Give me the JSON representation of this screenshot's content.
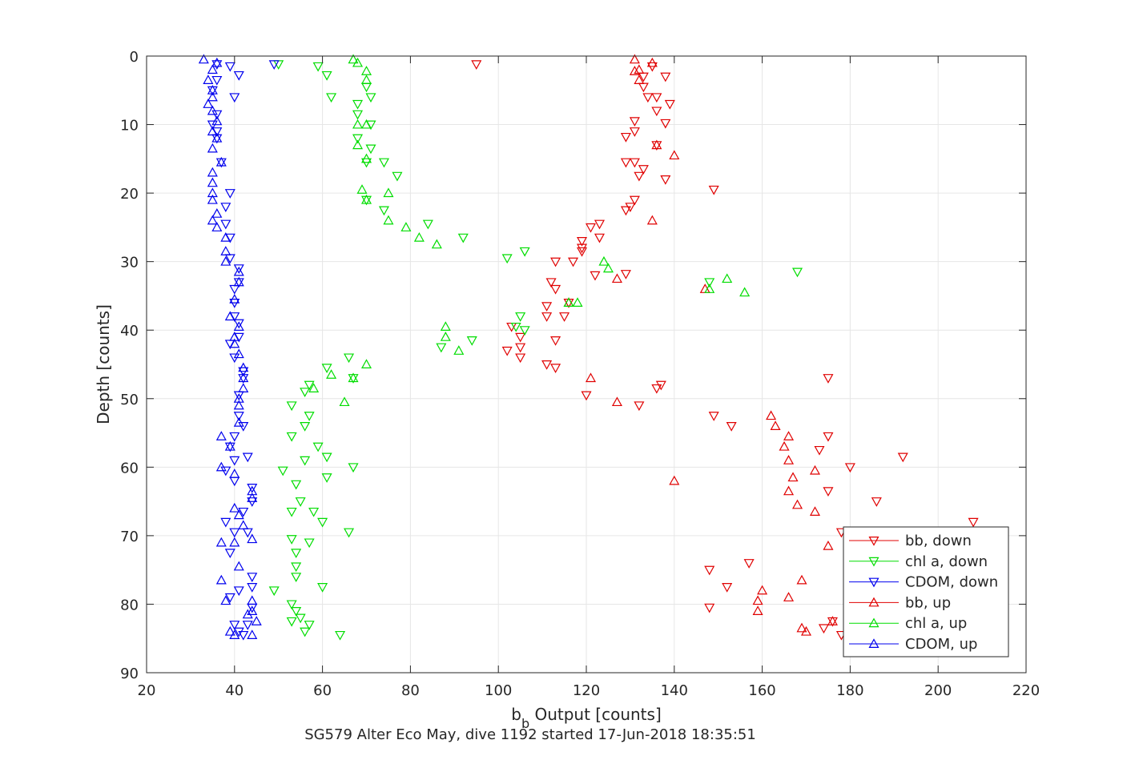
{
  "chart_data": {
    "type": "scatter",
    "title": "",
    "xlabel_main": "b",
    "xlabel_sub": "b",
    "xlabel_rest": " Output [counts]",
    "ylabel": "Depth [counts]",
    "caption": "SG579 Alter Eco May, dive 1192 started 17-Jun-2018 18:35:51",
    "xlim": [
      20,
      220
    ],
    "ylim": [
      0,
      90
    ],
    "y_reversed": true,
    "grid": true,
    "legend_position": "bottom-right",
    "x_ticks": [
      "20",
      "40",
      "60",
      "80",
      "100",
      "120",
      "140",
      "160",
      "180",
      "200",
      "220"
    ],
    "y_ticks": [
      "0",
      "10",
      "20",
      "30",
      "40",
      "50",
      "60",
      "70",
      "80",
      "90"
    ],
    "series": [
      {
        "name": "bb, down",
        "color": "#e00000",
        "marker": "triangle-down",
        "points": [
          [
            95,
            1.2
          ],
          [
            135,
            1.5
          ],
          [
            133,
            3
          ],
          [
            138,
            3
          ],
          [
            133,
            4.5
          ],
          [
            136,
            6
          ],
          [
            134,
            6
          ],
          [
            139,
            7
          ],
          [
            136,
            8
          ],
          [
            131,
            9.5
          ],
          [
            138,
            9.8
          ],
          [
            131,
            11
          ],
          [
            136,
            13
          ],
          [
            129,
            11.8
          ],
          [
            131,
            15.5
          ],
          [
            129,
            15.5
          ],
          [
            133,
            16.5
          ],
          [
            132,
            17.5
          ],
          [
            138,
            18
          ],
          [
            149,
            19.5
          ],
          [
            131,
            21
          ],
          [
            130,
            22
          ],
          [
            129,
            22.5
          ],
          [
            123,
            24.5
          ],
          [
            121,
            25
          ],
          [
            123,
            26.5
          ],
          [
            119,
            27
          ],
          [
            119,
            28
          ],
          [
            119,
            28.5
          ],
          [
            113,
            30
          ],
          [
            117,
            30
          ],
          [
            122,
            32
          ],
          [
            129,
            31.8
          ],
          [
            112,
            33
          ],
          [
            113,
            34
          ],
          [
            111,
            36.5
          ],
          [
            116,
            36
          ],
          [
            115,
            38
          ],
          [
            111,
            38
          ],
          [
            103,
            39.5
          ],
          [
            105,
            41
          ],
          [
            113,
            41.5
          ],
          [
            105,
            42.5
          ],
          [
            102,
            43
          ],
          [
            105,
            44
          ],
          [
            111,
            45
          ],
          [
            113,
            45.5
          ],
          [
            137,
            48
          ],
          [
            136,
            48.5
          ],
          [
            120,
            49.5
          ],
          [
            132,
            51
          ],
          [
            175,
            47
          ],
          [
            149,
            52.5
          ],
          [
            153,
            54
          ],
          [
            175,
            55.5
          ],
          [
            173,
            57.5
          ],
          [
            180,
            60
          ],
          [
            192,
            58.5
          ],
          [
            186,
            65
          ],
          [
            175,
            63.5
          ],
          [
            208,
            68
          ],
          [
            178,
            69.5
          ],
          [
            157,
            74
          ],
          [
            148,
            75
          ],
          [
            152,
            77.5
          ],
          [
            148,
            80.5
          ],
          [
            176,
            82.5
          ],
          [
            174,
            83.5
          ],
          [
            178,
            84.5
          ]
        ]
      },
      {
        "name": "chl a, down",
        "color": "#00dd00",
        "marker": "triangle-down",
        "points": [
          [
            50,
            1.2
          ],
          [
            59,
            1.5
          ],
          [
            61,
            2.8
          ],
          [
            62,
            6
          ],
          [
            68,
            7
          ],
          [
            70,
            4.5
          ],
          [
            71,
            6
          ],
          [
            68,
            8.5
          ],
          [
            71,
            10
          ],
          [
            68,
            12
          ],
          [
            71,
            13.5
          ],
          [
            70,
            15.5
          ],
          [
            74,
            15.5
          ],
          [
            77,
            17.5
          ],
          [
            70,
            21
          ],
          [
            74,
            22.5
          ],
          [
            84,
            24.5
          ],
          [
            92,
            26.5
          ],
          [
            106,
            28.5
          ],
          [
            102,
            29.5
          ],
          [
            105,
            38
          ],
          [
            106,
            40
          ],
          [
            94,
            41.5
          ],
          [
            87,
            42.5
          ],
          [
            104,
            39.5
          ],
          [
            66,
            44
          ],
          [
            61,
            45.5
          ],
          [
            67,
            47
          ],
          [
            57,
            48
          ],
          [
            56,
            49
          ],
          [
            53,
            51
          ],
          [
            57,
            52.5
          ],
          [
            56,
            54
          ],
          [
            53,
            55.5
          ],
          [
            59,
            57
          ],
          [
            61,
            58.5
          ],
          [
            56,
            59
          ],
          [
            51,
            60.5
          ],
          [
            67,
            60
          ],
          [
            61,
            61.5
          ],
          [
            54,
            62.5
          ],
          [
            55,
            65
          ],
          [
            53,
            66.5
          ],
          [
            58,
            66.5
          ],
          [
            60,
            68
          ],
          [
            66,
            69.5
          ],
          [
            53,
            70.5
          ],
          [
            57,
            71
          ],
          [
            54,
            72.5
          ],
          [
            54,
            74.5
          ],
          [
            60,
            77.5
          ],
          [
            54,
            76
          ],
          [
            49,
            78
          ],
          [
            53,
            80
          ],
          [
            54,
            81
          ],
          [
            55,
            82
          ],
          [
            57,
            83
          ],
          [
            53,
            82.5
          ],
          [
            56,
            84
          ],
          [
            64,
            84.5
          ],
          [
            168,
            31.5
          ],
          [
            148,
            33
          ]
        ]
      },
      {
        "name": "CDOM, down",
        "color": "#0000ee",
        "marker": "triangle-down",
        "points": [
          [
            36,
            1.2
          ],
          [
            39,
            1.5
          ],
          [
            41,
            2.8
          ],
          [
            40,
            6
          ],
          [
            49,
            1.2
          ],
          [
            36,
            3.5
          ],
          [
            35,
            5
          ],
          [
            36,
            8.5
          ],
          [
            35,
            10
          ],
          [
            36,
            11
          ],
          [
            36,
            12
          ],
          [
            37,
            15.5
          ],
          [
            39,
            20
          ],
          [
            38,
            22
          ],
          [
            38,
            24.5
          ],
          [
            39,
            26.5
          ],
          [
            39,
            29.5
          ],
          [
            41,
            31
          ],
          [
            41,
            33
          ],
          [
            40,
            34
          ],
          [
            40,
            36
          ],
          [
            40,
            38
          ],
          [
            41,
            39
          ],
          [
            41,
            41
          ],
          [
            39,
            42
          ],
          [
            40,
            44
          ],
          [
            42,
            46
          ],
          [
            42,
            47
          ],
          [
            41,
            49.5
          ],
          [
            41,
            52.5
          ],
          [
            42,
            54
          ],
          [
            40,
            55.5
          ],
          [
            39,
            57
          ],
          [
            43,
            58.5
          ],
          [
            40,
            59
          ],
          [
            38,
            60.5
          ],
          [
            40,
            62
          ],
          [
            44,
            63
          ],
          [
            44,
            65
          ],
          [
            42,
            66.5
          ],
          [
            38,
            68
          ],
          [
            40,
            69.5
          ],
          [
            43,
            69.5
          ],
          [
            39,
            72.5
          ],
          [
            44,
            76
          ],
          [
            44,
            77.5
          ],
          [
            41,
            78
          ],
          [
            39,
            79
          ],
          [
            44,
            80.5
          ],
          [
            40,
            83
          ],
          [
            43,
            83
          ],
          [
            41,
            84
          ],
          [
            42,
            84.5
          ]
        ]
      },
      {
        "name": "bb, up",
        "color": "#e00000",
        "marker": "triangle-up",
        "points": [
          [
            131,
            0.5
          ],
          [
            135,
            1
          ],
          [
            132,
            2
          ],
          [
            132,
            3.5
          ],
          [
            136,
            13
          ],
          [
            140,
            14.5
          ],
          [
            135,
            24
          ],
          [
            127,
            32.5
          ],
          [
            116,
            36
          ],
          [
            147,
            34
          ],
          [
            131,
            2.2
          ],
          [
            162,
            52.5
          ],
          [
            163,
            54
          ],
          [
            166,
            55.5
          ],
          [
            165,
            57
          ],
          [
            166,
            59
          ],
          [
            167,
            61.5
          ],
          [
            172,
            60.5
          ],
          [
            166,
            63.5
          ],
          [
            168,
            65.5
          ],
          [
            172,
            66.5
          ],
          [
            175,
            71.5
          ],
          [
            140,
            62
          ],
          [
            169,
            76.5
          ],
          [
            160,
            78
          ],
          [
            166,
            79
          ],
          [
            159,
            79.5
          ],
          [
            159,
            81
          ],
          [
            176,
            82.5
          ],
          [
            169,
            83.5
          ],
          [
            170,
            84
          ],
          [
            121,
            47
          ],
          [
            127,
            50.5
          ]
        ]
      },
      {
        "name": "chl a, up",
        "color": "#00dd00",
        "marker": "triangle-up",
        "points": [
          [
            67,
            0.5
          ],
          [
            68,
            1
          ],
          [
            70,
            2.2
          ],
          [
            70,
            3.5
          ],
          [
            68,
            10
          ],
          [
            70,
            10
          ],
          [
            68,
            13
          ],
          [
            70,
            15
          ],
          [
            69,
            19.5
          ],
          [
            75,
            20
          ],
          [
            70,
            21
          ],
          [
            75,
            24
          ],
          [
            79,
            25
          ],
          [
            82,
            26.5
          ],
          [
            86,
            27.5
          ],
          [
            124,
            30
          ],
          [
            125,
            31
          ],
          [
            118,
            36
          ],
          [
            116,
            36
          ],
          [
            88,
            39.5
          ],
          [
            88,
            41
          ],
          [
            91,
            43
          ],
          [
            70,
            45
          ],
          [
            67,
            47
          ],
          [
            65,
            50.5
          ],
          [
            58,
            48.5
          ],
          [
            62,
            46.5
          ],
          [
            152,
            32.5
          ],
          [
            156,
            34.5
          ],
          [
            148,
            34
          ]
        ]
      },
      {
        "name": "CDOM, up",
        "color": "#0000ee",
        "marker": "triangle-up",
        "points": [
          [
            33,
            0.5
          ],
          [
            36,
            1
          ],
          [
            35,
            2
          ],
          [
            34,
            3.5
          ],
          [
            35,
            5
          ],
          [
            35,
            6
          ],
          [
            34,
            7
          ],
          [
            35,
            8
          ],
          [
            36,
            9.5
          ],
          [
            35,
            11
          ],
          [
            36,
            12
          ],
          [
            35,
            13.5
          ],
          [
            37,
            15.5
          ],
          [
            35,
            17
          ],
          [
            35,
            18.5
          ],
          [
            35,
            20
          ],
          [
            35,
            21
          ],
          [
            36,
            23
          ],
          [
            35,
            24
          ],
          [
            36,
            25
          ],
          [
            38,
            26.5
          ],
          [
            38,
            28.5
          ],
          [
            38,
            30
          ],
          [
            41,
            31.5
          ],
          [
            41,
            33
          ],
          [
            40,
            35.5
          ],
          [
            39,
            38
          ],
          [
            41,
            39.5
          ],
          [
            40,
            41
          ],
          [
            40,
            42
          ],
          [
            41,
            43.5
          ],
          [
            42,
            45.5
          ],
          [
            42,
            47
          ],
          [
            42,
            48.5
          ],
          [
            41,
            50
          ],
          [
            41,
            51
          ],
          [
            41,
            53.5
          ],
          [
            37,
            55.5
          ],
          [
            39,
            57
          ],
          [
            37,
            60
          ],
          [
            40,
            61
          ],
          [
            44,
            63.5
          ],
          [
            44,
            64.5
          ],
          [
            40,
            66
          ],
          [
            41,
            67
          ],
          [
            42,
            68.5
          ],
          [
            37,
            71
          ],
          [
            40,
            71
          ],
          [
            44,
            70.5
          ],
          [
            41,
            74.5
          ],
          [
            37,
            76.5
          ],
          [
            38,
            79.5
          ],
          [
            44,
            79.5
          ],
          [
            44,
            81
          ],
          [
            43,
            81.5
          ],
          [
            45,
            82.5
          ],
          [
            39,
            84
          ],
          [
            40,
            84.5
          ],
          [
            44,
            84.5
          ]
        ]
      }
    ]
  }
}
